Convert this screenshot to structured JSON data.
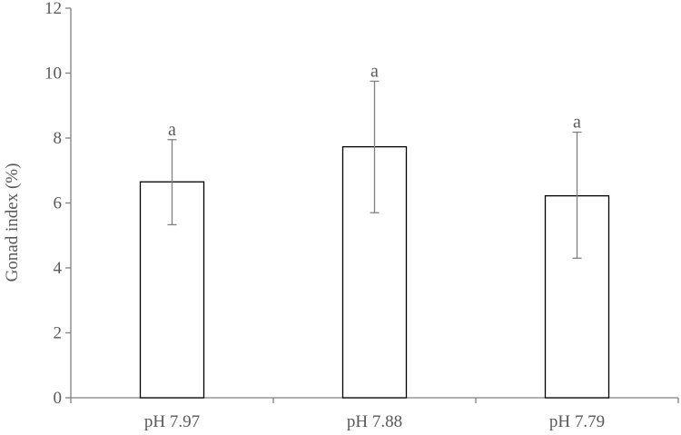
{
  "chart_data": {
    "type": "bar",
    "title": "",
    "xlabel": "",
    "ylabel": "Gonad index (%)",
    "ylim": [
      0,
      12
    ],
    "yticks": [
      0,
      2,
      4,
      6,
      8,
      10,
      12
    ],
    "grid": false,
    "categories": [
      "pH 7.97",
      "pH 7.88",
      "pH 7.79"
    ],
    "values": [
      6.65,
      7.73,
      6.22
    ],
    "error_low": [
      5.33,
      5.7,
      4.3
    ],
    "error_high": [
      7.95,
      9.75,
      8.18
    ],
    "significance_labels": [
      "a",
      "a",
      "a"
    ],
    "colors": {
      "bar_fill": "#ffffff",
      "bar_stroke": "#000000",
      "axis": "#808080",
      "error_bar": "#808080",
      "text": "#595959"
    }
  }
}
